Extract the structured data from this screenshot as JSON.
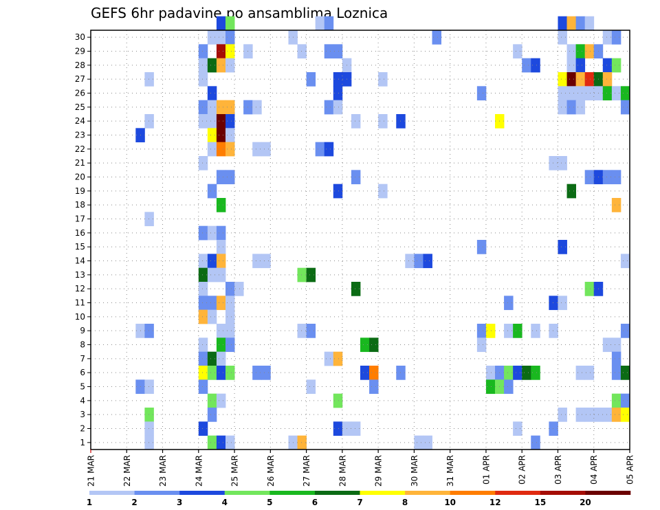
{
  "chart_data": {
    "type": "heatmap",
    "title": "GEFS 6hr padavine po ansamblima Loznica",
    "x_tick_labels": [
      "21 MAR",
      "22 MAR",
      "23 MAR",
      "24 MAR",
      "25 MAR",
      "26 MAR",
      "27 MAR",
      "28 MAR",
      "29 MAR",
      "30 MAR",
      "31 MAR",
      "01 APR",
      "02 APR",
      "03 APR",
      "04 APR",
      "05 APR"
    ],
    "y_tick_labels": [
      "1",
      "2",
      "3",
      "4",
      "5",
      "6",
      "7",
      "8",
      "9",
      "10",
      "11",
      "12",
      "13",
      "14",
      "15",
      "16",
      "17",
      "18",
      "19",
      "20",
      "21",
      "22",
      "23",
      "24",
      "25",
      "26",
      "27",
      "28",
      "29",
      "30"
    ],
    "x_steps_per_day": 4,
    "x_range_steps": [
      0,
      60
    ],
    "y_range": [
      0,
      30
    ],
    "grid": "dotted",
    "legend": {
      "placement": "bottom",
      "colors": [
        "#b3c6f5",
        "#6a8ff0",
        "#1d49de",
        "#72e65c",
        "#19b81f",
        "#0b6b14",
        "#ffff00",
        "#ffb43a",
        "#ff7d00",
        "#e02a10",
        "#a50d05",
        "#6b0000"
      ],
      "labels": [
        "1",
        "2",
        "3",
        "4",
        "5",
        "6",
        "7",
        "8",
        "10",
        "12",
        "15",
        "20"
      ]
    },
    "cells": [
      [
        14,
        30,
        3
      ],
      [
        15,
        30,
        4
      ],
      [
        25,
        30,
        1
      ],
      [
        26,
        30,
        2
      ],
      [
        52,
        30,
        3
      ],
      [
        53,
        30,
        8
      ],
      [
        54,
        30,
        2
      ],
      [
        55,
        30,
        1
      ],
      [
        13,
        29,
        1
      ],
      [
        14,
        29,
        1
      ],
      [
        15,
        29,
        2
      ],
      [
        22,
        29,
        1
      ],
      [
        38,
        29,
        2
      ],
      [
        52,
        29,
        1
      ],
      [
        57,
        29,
        1
      ],
      [
        58,
        29,
        2
      ],
      [
        12,
        28,
        2
      ],
      [
        14,
        28,
        11
      ],
      [
        15,
        28,
        7
      ],
      [
        17,
        28,
        1
      ],
      [
        23,
        28,
        1
      ],
      [
        26,
        28,
        2
      ],
      [
        27,
        28,
        2
      ],
      [
        47,
        28,
        1
      ],
      [
        53,
        28,
        1
      ],
      [
        54,
        28,
        5
      ],
      [
        55,
        28,
        8
      ],
      [
        56,
        28,
        2
      ],
      [
        12,
        27,
        1
      ],
      [
        13,
        27,
        6
      ],
      [
        14,
        27,
        8
      ],
      [
        15,
        27,
        1
      ],
      [
        28,
        27,
        1
      ],
      [
        48,
        27,
        2
      ],
      [
        49,
        27,
        3
      ],
      [
        53,
        27,
        1
      ],
      [
        54,
        27,
        3
      ],
      [
        57,
        27,
        3
      ],
      [
        58,
        27,
        4
      ],
      [
        6,
        26,
        1
      ],
      [
        12,
        26,
        1
      ],
      [
        24,
        26,
        2
      ],
      [
        27,
        26,
        3
      ],
      [
        28,
        26,
        3
      ],
      [
        32,
        26,
        1
      ],
      [
        52,
        26,
        7
      ],
      [
        53,
        26,
        12
      ],
      [
        54,
        26,
        8
      ],
      [
        55,
        26,
        10
      ],
      [
        56,
        26,
        6
      ],
      [
        57,
        26,
        8
      ],
      [
        13,
        25,
        3
      ],
      [
        27,
        25,
        3
      ],
      [
        43,
        25,
        2
      ],
      [
        52,
        25,
        1
      ],
      [
        53,
        25,
        1
      ],
      [
        54,
        25,
        1
      ],
      [
        55,
        25,
        1
      ],
      [
        56,
        25,
        1
      ],
      [
        57,
        25,
        5
      ],
      [
        58,
        25,
        1
      ],
      [
        59,
        25,
        5
      ],
      [
        12,
        24,
        2
      ],
      [
        13,
        24,
        1
      ],
      [
        14,
        24,
        8
      ],
      [
        15,
        24,
        8
      ],
      [
        17,
        24,
        2
      ],
      [
        18,
        24,
        1
      ],
      [
        26,
        24,
        2
      ],
      [
        27,
        24,
        1
      ],
      [
        52,
        24,
        1
      ],
      [
        53,
        24,
        2
      ],
      [
        54,
        24,
        1
      ],
      [
        59,
        24,
        2
      ],
      [
        6,
        23,
        1
      ],
      [
        12,
        23,
        1
      ],
      [
        13,
        23,
        1
      ],
      [
        14,
        23,
        12
      ],
      [
        15,
        23,
        3
      ],
      [
        29,
        23,
        1
      ],
      [
        32,
        23,
        1
      ],
      [
        34,
        23,
        3
      ],
      [
        45,
        23,
        7
      ],
      [
        5,
        22,
        3
      ],
      [
        13,
        22,
        7
      ],
      [
        14,
        22,
        12
      ],
      [
        15,
        22,
        1
      ],
      [
        13,
        21,
        1
      ],
      [
        14,
        21,
        9
      ],
      [
        15,
        21,
        8
      ],
      [
        18,
        21,
        1
      ],
      [
        19,
        21,
        1
      ],
      [
        25,
        21,
        2
      ],
      [
        26,
        21,
        3
      ],
      [
        12,
        20,
        1
      ],
      [
        51,
        20,
        1
      ],
      [
        52,
        20,
        1
      ],
      [
        14,
        19,
        2
      ],
      [
        15,
        19,
        2
      ],
      [
        29,
        19,
        2
      ],
      [
        55,
        19,
        2
      ],
      [
        56,
        19,
        3
      ],
      [
        57,
        19,
        2
      ],
      [
        58,
        19,
        2
      ],
      [
        13,
        18,
        2
      ],
      [
        27,
        18,
        3
      ],
      [
        32,
        18,
        1
      ],
      [
        53,
        18,
        6
      ],
      [
        14,
        17,
        5
      ],
      [
        58,
        17,
        8
      ],
      [
        6,
        16,
        1
      ],
      [
        12,
        15,
        2
      ],
      [
        13,
        15,
        1
      ],
      [
        14,
        15,
        2
      ],
      [
        14,
        14,
        1
      ],
      [
        43,
        14,
        2
      ],
      [
        52,
        14,
        3
      ],
      [
        12,
        13,
        1
      ],
      [
        13,
        13,
        3
      ],
      [
        14,
        13,
        8
      ],
      [
        18,
        13,
        1
      ],
      [
        19,
        13,
        1
      ],
      [
        35,
        13,
        1
      ],
      [
        36,
        13,
        2
      ],
      [
        37,
        13,
        3
      ],
      [
        59,
        13,
        1
      ],
      [
        12,
        12,
        6
      ],
      [
        13,
        12,
        1
      ],
      [
        14,
        12,
        1
      ],
      [
        23,
        12,
        4
      ],
      [
        24,
        12,
        6
      ],
      [
        12,
        11,
        1
      ],
      [
        15,
        11,
        2
      ],
      [
        16,
        11,
        1
      ],
      [
        29,
        11,
        6
      ],
      [
        55,
        11,
        4
      ],
      [
        56,
        11,
        3
      ],
      [
        12,
        10,
        2
      ],
      [
        13,
        10,
        2
      ],
      [
        14,
        10,
        8
      ],
      [
        15,
        10,
        1
      ],
      [
        46,
        10,
        2
      ],
      [
        51,
        10,
        3
      ],
      [
        52,
        10,
        1
      ],
      [
        12,
        9,
        8
      ],
      [
        13,
        9,
        1
      ],
      [
        15,
        9,
        1
      ],
      [
        5,
        8,
        1
      ],
      [
        6,
        8,
        2
      ],
      [
        14,
        8,
        1
      ],
      [
        15,
        8,
        1
      ],
      [
        23,
        8,
        1
      ],
      [
        24,
        8,
        2
      ],
      [
        43,
        8,
        2
      ],
      [
        44,
        8,
        7
      ],
      [
        46,
        8,
        1
      ],
      [
        47,
        8,
        5
      ],
      [
        49,
        8,
        1
      ],
      [
        51,
        8,
        1
      ],
      [
        59,
        8,
        2
      ],
      [
        12,
        7,
        1
      ],
      [
        14,
        7,
        5
      ],
      [
        15,
        7,
        2
      ],
      [
        30,
        7,
        5
      ],
      [
        31,
        7,
        6
      ],
      [
        43,
        7,
        1
      ],
      [
        57,
        7,
        1
      ],
      [
        58,
        7,
        1
      ],
      [
        12,
        6,
        2
      ],
      [
        13,
        6,
        6
      ],
      [
        14,
        6,
        1
      ],
      [
        26,
        6,
        1
      ],
      [
        27,
        6,
        8
      ],
      [
        58,
        6,
        2
      ],
      [
        12,
        5,
        7
      ],
      [
        13,
        5,
        4
      ],
      [
        14,
        5,
        3
      ],
      [
        15,
        5,
        4
      ],
      [
        18,
        5,
        2
      ],
      [
        19,
        5,
        2
      ],
      [
        30,
        5,
        3
      ],
      [
        31,
        5,
        9
      ],
      [
        34,
        5,
        2
      ],
      [
        44,
        5,
        1
      ],
      [
        45,
        5,
        2
      ],
      [
        46,
        5,
        4
      ],
      [
        47,
        5,
        3
      ],
      [
        48,
        5,
        6
      ],
      [
        49,
        5,
        5
      ],
      [
        54,
        5,
        1
      ],
      [
        55,
        5,
        1
      ],
      [
        58,
        5,
        2
      ],
      [
        59,
        5,
        6
      ],
      [
        5,
        4,
        2
      ],
      [
        6,
        4,
        1
      ],
      [
        12,
        4,
        2
      ],
      [
        24,
        4,
        1
      ],
      [
        31,
        4,
        2
      ],
      [
        44,
        4,
        5
      ],
      [
        45,
        4,
        4
      ],
      [
        46,
        4,
        2
      ],
      [
        13,
        3,
        4
      ],
      [
        14,
        3,
        1
      ],
      [
        27,
        3,
        4
      ],
      [
        58,
        3,
        4
      ],
      [
        59,
        3,
        2
      ],
      [
        6,
        2,
        4
      ],
      [
        13,
        2,
        2
      ],
      [
        52,
        2,
        1
      ],
      [
        54,
        2,
        1
      ],
      [
        55,
        2,
        1
      ],
      [
        56,
        2,
        1
      ],
      [
        57,
        2,
        1
      ],
      [
        58,
        2,
        8
      ],
      [
        59,
        2,
        7
      ],
      [
        6,
        1,
        1
      ],
      [
        12,
        1,
        3
      ],
      [
        27,
        1,
        3
      ],
      [
        28,
        1,
        1
      ],
      [
        29,
        1,
        1
      ],
      [
        47,
        1,
        1
      ],
      [
        51,
        1,
        2
      ],
      [
        6,
        0,
        1
      ],
      [
        13,
        0,
        4
      ],
      [
        14,
        0,
        3
      ],
      [
        15,
        0,
        1
      ],
      [
        22,
        0,
        1
      ],
      [
        23,
        0,
        8
      ],
      [
        36,
        0,
        1
      ],
      [
        37,
        0,
        1
      ],
      [
        49,
        0,
        2
      ]
    ]
  }
}
